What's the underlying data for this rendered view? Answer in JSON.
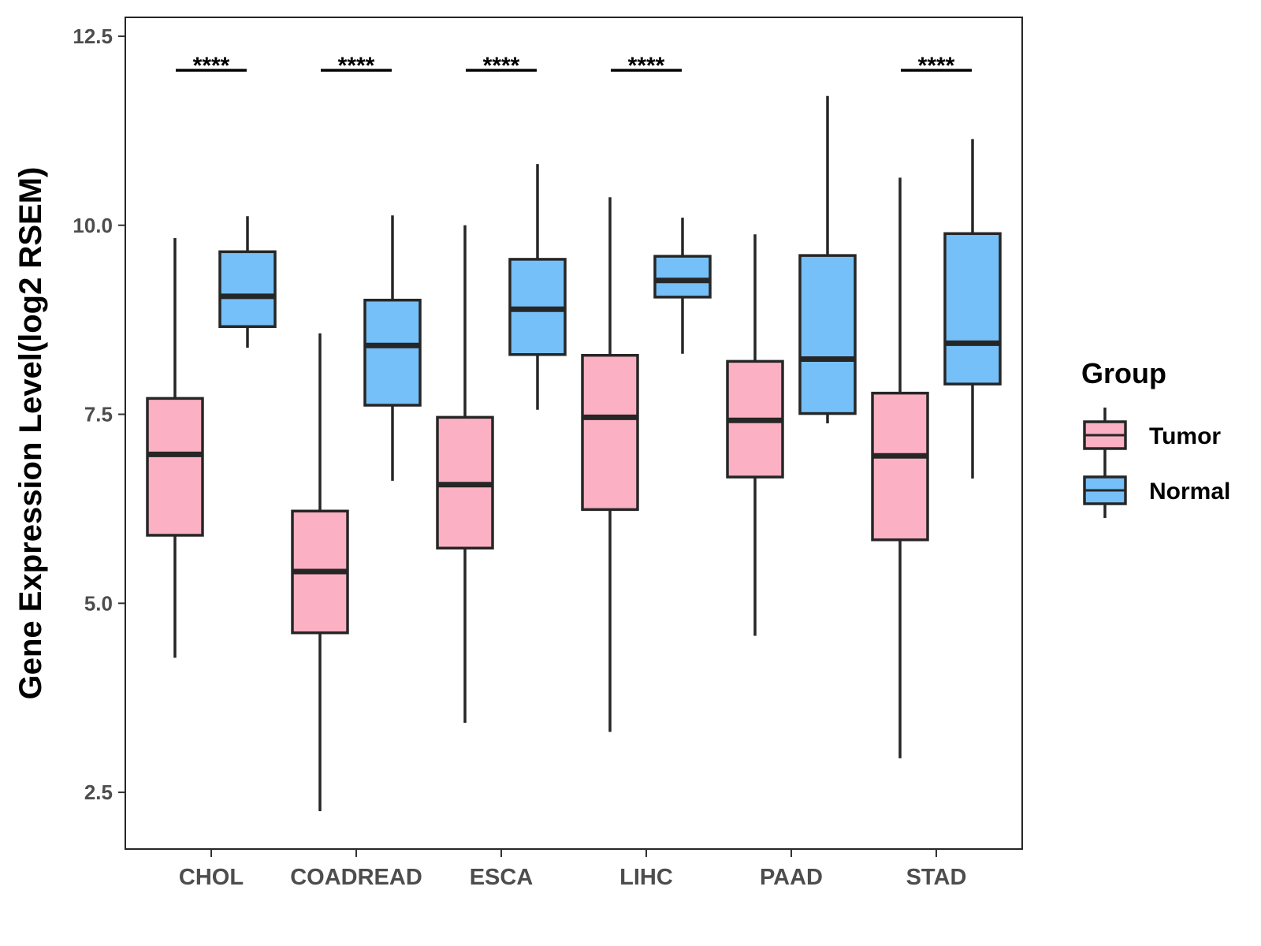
{
  "chart_data": {
    "type": "boxplot",
    "title": "",
    "xlabel": "",
    "ylabel": "Gene Expression Level(log2 RSEM)",
    "ylim": [
      1.75,
      12.75
    ],
    "yticks": [
      2.5,
      5.0,
      7.5,
      10.0,
      12.5
    ],
    "ytick_labels": [
      "2.5",
      "5.0",
      "7.5",
      "10.0",
      "12.5"
    ],
    "categories": [
      "CHOL",
      "COADREAD",
      "ESCA",
      "LIHC",
      "PAAD",
      "STAD"
    ],
    "legend": {
      "title": "Group",
      "position": "right",
      "entries": [
        {
          "name": "Tumor",
          "color": "#FBB1C3"
        },
        {
          "name": "Normal",
          "color": "#75C0F8"
        }
      ]
    },
    "series": [
      {
        "name": "Tumor",
        "color": "#FBB1C3",
        "boxes": [
          {
            "min": 4.28,
            "q1": 5.9,
            "median": 6.97,
            "q3": 7.71,
            "max": 9.83
          },
          {
            "min": 2.25,
            "q1": 4.61,
            "median": 5.42,
            "q3": 6.22,
            "max": 8.57
          },
          {
            "min": 3.42,
            "q1": 5.73,
            "median": 6.57,
            "q3": 7.46,
            "max": 10.0
          },
          {
            "min": 3.3,
            "q1": 6.24,
            "median": 7.46,
            "q3": 8.28,
            "max": 10.37
          },
          {
            "min": 4.57,
            "q1": 6.67,
            "median": 7.42,
            "q3": 8.2,
            "max": 9.88
          },
          {
            "min": 2.95,
            "q1": 5.84,
            "median": 6.95,
            "q3": 7.78,
            "max": 10.63
          }
        ]
      },
      {
        "name": "Normal",
        "color": "#75C0F8",
        "boxes": [
          {
            "min": 8.38,
            "q1": 8.66,
            "median": 9.06,
            "q3": 9.65,
            "max": 10.12
          },
          {
            "min": 6.62,
            "q1": 7.62,
            "median": 8.41,
            "q3": 9.01,
            "max": 10.13
          },
          {
            "min": 7.56,
            "q1": 8.29,
            "median": 8.89,
            "q3": 9.55,
            "max": 10.81
          },
          {
            "min": 8.3,
            "q1": 9.05,
            "median": 9.27,
            "q3": 9.59,
            "max": 10.1
          },
          {
            "min": 7.38,
            "q1": 7.51,
            "median": 8.23,
            "q3": 9.6,
            "max": 11.71
          },
          {
            "min": 6.65,
            "q1": 7.9,
            "median": 8.44,
            "q3": 9.89,
            "max": 11.14
          }
        ]
      }
    ],
    "significance": [
      {
        "category": "CHOL",
        "label": "****"
      },
      {
        "category": "COADREAD",
        "label": "****"
      },
      {
        "category": "ESCA",
        "label": "****"
      },
      {
        "category": "LIHC",
        "label": "****"
      },
      {
        "category": "STAD",
        "label": "****"
      }
    ],
    "significance_level": 12.05
  }
}
